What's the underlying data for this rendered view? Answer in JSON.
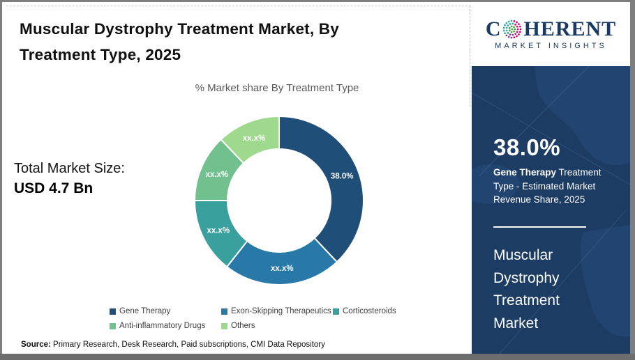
{
  "header": {
    "title": "Muscular Dystrophy Treatment Market, By Treatment Type, 2025"
  },
  "logo": {
    "word_start": "C",
    "word_end": "HERENT",
    "tagline": "MARKET INSIGHTS",
    "navy": "#1b3a61",
    "dot_colors": {
      "center_green": "#3FA13F",
      "right_pink": "#D4006F",
      "bottom_purple": "#7C3B8F",
      "left_teal": "#2FA79F"
    }
  },
  "total_market": {
    "label": "Total Market Size:",
    "value": "USD 4.7 Bn"
  },
  "chart_data": {
    "type": "pie",
    "subtype": "donut",
    "title": "% Market share By Treatment Type",
    "unit": "%",
    "start_angle_deg": 0,
    "direction": "clockwise",
    "legend_position": "bottom",
    "segments": [
      {
        "name": "Gene Therapy",
        "display_label": "38.0%",
        "value_pct": 38.0,
        "value_masked": false,
        "color": "#1F4E79"
      },
      {
        "name": "Exon-Skipping Therapeutics",
        "display_label": "xx.x%",
        "value_pct": 22.6,
        "value_masked": true,
        "color": "#2879A8"
      },
      {
        "name": "Corticosteroids",
        "display_label": "xx.x%",
        "value_pct": 14.4,
        "value_masked": true,
        "color": "#3AA09D"
      },
      {
        "name": "Anti-inflammatory Drugs",
        "display_label": "xx.x%",
        "value_pct": 12.9,
        "value_masked": true,
        "color": "#71C08D"
      },
      {
        "name": "Others",
        "display_label": "xx.x%",
        "value_pct": 12.1,
        "value_masked": true,
        "color": "#9FD98E"
      }
    ]
  },
  "sidebar": {
    "stat_value": "38.0%",
    "stat_bold": "Gene Therapy",
    "stat_rest": " Treatment Type - Estimated Market Revenue Share, 2025",
    "market_name": "Muscular Dystrophy Treatment Market",
    "background": "#1c3c64"
  },
  "source": {
    "label": "Source:",
    "text": " Primary Research, Desk Research, Paid subscriptions, CMI Data Repository"
  }
}
